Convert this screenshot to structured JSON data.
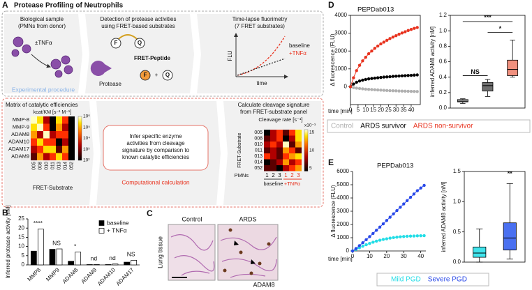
{
  "panel_a": {
    "label": "A",
    "title": "Protease Profiling of Neutrophils",
    "sample": [
      "Biological sample",
      "(PMNs from donor)"
    ],
    "stimulus": "±TNFα",
    "detection": [
      "Detection of protease activities",
      "using FRET-based substrates"
    ],
    "fluorophore": "F",
    "quencher": "Q",
    "peptide": "FRET-Peptide",
    "protease": "Protease",
    "plus": "+",
    "fluorimetry": [
      "Time-lapse fluorimetry",
      "(7 FRET substrates)"
    ],
    "curve_legend": [
      "baseline",
      "+TNFα"
    ],
    "y_label": "FLU",
    "x_label": "time",
    "procedure": "Experimental procedure",
    "matrix_title": "Matrix of catalytic efficiencies",
    "matrix_unit": "kcat/KM [s⁻¹ M⁻¹]",
    "enzymes": [
      "MMP-8",
      "MMP-9",
      "ADAM8",
      "ADAM10",
      "ADAM17",
      "ADAM9"
    ],
    "matrix_scale": [
      "10⁶",
      "10⁵",
      "10⁴",
      "10³",
      "10²"
    ],
    "substrates": [
      "005",
      "008",
      "010",
      "011",
      "013",
      "014",
      "052"
    ],
    "substrate_label": "FRET-Substrate",
    "inference": [
      "Infer specific enzyme",
      "activities from cleavage",
      "signature by comparison to",
      "known catalytic efficiencies"
    ],
    "computation": "Computational calculation",
    "signature": [
      "Calculate cleavage signature",
      "from FRET-substrate panel"
    ],
    "rate_unit": "Cleavage rate [s⁻¹]",
    "rate_scale_factor": "x10⁻³",
    "rate_scale": [
      "15",
      "10",
      "5"
    ],
    "pmn_label": "PMNs",
    "donors": [
      "1",
      "2",
      "3",
      "1",
      "2",
      "3"
    ],
    "conditions": [
      "baseline",
      "+TNFα"
    ]
  },
  "panel_c": {
    "label": "C",
    "columns": [
      "Control",
      "ARDS"
    ],
    "tissue": "Lung tissue",
    "stain": "ADAM8"
  },
  "chart_data": [
    {
      "type": "bar",
      "panel": "B",
      "y_label": "Inferred protease activity [nM]",
      "categories": [
        "MMP8",
        "MMP9",
        "ADAM8",
        "ADAM9",
        "ADAM10",
        "ADAM17"
      ],
      "series": [
        {
          "name": "baseline",
          "color": "#000000",
          "values": [
            7.5,
            8.5,
            2,
            0.2,
            0.2,
            1.5
          ]
        },
        {
          "name": "+ TNFα",
          "color": "#ffffff",
          "values": [
            19.5,
            8.7,
            7,
            0.2,
            0.5,
            2.5
          ]
        }
      ],
      "annotations": [
        "****",
        "NS",
        "*",
        "nd",
        "nd",
        "NS"
      ],
      "ylim": [
        0,
        25
      ],
      "yticks": [
        0,
        5,
        10,
        15,
        20,
        25
      ],
      "legend": "top-right"
    },
    {
      "type": "line",
      "panel": "D",
      "title": "PEPDab013",
      "y_label": "Δ fluorescence (FLU)",
      "x_label": "time [min]",
      "x": [
        0,
        2,
        4,
        6,
        8,
        10,
        12,
        14,
        16,
        18,
        20,
        22,
        24,
        26,
        28,
        30,
        32,
        34,
        36,
        38,
        40,
        42,
        44
      ],
      "series": [
        {
          "name": "Control",
          "color": "#b0b0b0",
          "values": [
            0,
            -50,
            -80,
            -100,
            -120,
            -140,
            -150,
            -160,
            -170,
            -180,
            -190,
            -200,
            -210,
            -220,
            -225,
            -230,
            -240,
            -245,
            -250,
            -255,
            -260,
            -265,
            -270
          ]
        },
        {
          "name": "ARDS survivor",
          "color": "#000000",
          "values": [
            0,
            150,
            250,
            320,
            370,
            410,
            440,
            460,
            480,
            500,
            520,
            540,
            550,
            560,
            580,
            590,
            600,
            610,
            620,
            630,
            640,
            650,
            660
          ]
        },
        {
          "name": "ARDS non-survivor",
          "color": "#e8321e",
          "values": [
            0,
            500,
            900,
            1200,
            1450,
            1650,
            1850,
            2000,
            2150,
            2280,
            2400,
            2500,
            2600,
            2700,
            2780,
            2860,
            2940,
            3010,
            3080,
            3150,
            3210,
            3270,
            3320
          ]
        }
      ],
      "xlim": [
        0,
        46
      ],
      "xticks": [
        0,
        5,
        10,
        15,
        20,
        25,
        30,
        35,
        40
      ],
      "ylim": [
        -1000,
        4000
      ],
      "yticks": [
        0,
        1000,
        2000,
        3000,
        4000
      ],
      "legend": "bottom"
    },
    {
      "type": "box",
      "y_label": "inferred ADAM8 activity [nM]",
      "boxes": [
        {
          "color": "#c8c8c8",
          "min": 0.06,
          "q1": 0.08,
          "median": 0.09,
          "q3": 0.11,
          "max": 0.12
        },
        {
          "color": "#6e6e6e",
          "min": 0.15,
          "q1": 0.22,
          "median": 0.29,
          "q3": 0.33,
          "max": 0.37
        },
        {
          "color": "#f0907e",
          "min": 0.4,
          "q1": 0.42,
          "median": 0.5,
          "q3": 0.62,
          "max": 0.88
        }
      ],
      "annotations": [
        "***",
        "*",
        "NS"
      ],
      "ylim": [
        0,
        1.2
      ],
      "yticks": [
        {
          "value": 0,
          "label": "0.0"
        },
        0.2,
        0.4,
        0.6,
        0.8,
        {
          "value": 1,
          "label": "1.0"
        },
        1.2
      ]
    },
    {
      "type": "line",
      "panel": "E",
      "title": "PEPDab013",
      "y_label": "Δ fluorescence (FLU)",
      "x_label": "time [min]",
      "x": [
        0,
        2,
        4,
        6,
        8,
        10,
        12,
        14,
        16,
        18,
        20,
        22,
        24,
        26,
        28,
        30,
        32,
        34,
        36,
        38,
        40,
        42
      ],
      "series": [
        {
          "name": "Mild PGD",
          "color": "#22dde6",
          "values": [
            0,
            120,
            240,
            360,
            470,
            570,
            660,
            740,
            810,
            870,
            920,
            970,
            1010,
            1040,
            1070,
            1090,
            1110,
            1120,
            1130,
            1140,
            1150,
            1155
          ]
        },
        {
          "name": "Severe PGD",
          "color": "#2848e8",
          "values": [
            0,
            180,
            400,
            620,
            850,
            1080,
            1320,
            1560,
            1800,
            2050,
            2300,
            2550,
            2800,
            3050,
            3300,
            3550,
            3800,
            4050,
            4300,
            4550,
            4750,
            4950
          ]
        }
      ],
      "xlim": [
        0,
        43
      ],
      "xticks": [
        0,
        10,
        20,
        30,
        40
      ],
      "ylim": [
        0,
        6000
      ],
      "yticks": [
        0,
        1000,
        2000,
        3000,
        4000,
        5000,
        6000
      ],
      "legend": "bottom"
    },
    {
      "type": "box",
      "y_label": "inferred ADAM8 activity [nM]",
      "boxes": [
        {
          "color": "#40e4ec",
          "min": 0,
          "q1": 0.08,
          "median": 0.15,
          "q3": 0.25,
          "max": 0.55
        },
        {
          "color": "#4a70f0",
          "min": 0.05,
          "q1": 0.2,
          "median": 0.4,
          "q3": 0.65,
          "max": 1.3
        }
      ],
      "annotations": [
        "**"
      ],
      "ylim": [
        0,
        1.5
      ],
      "yticks": [
        {
          "value": 0,
          "label": "0.0"
        },
        0.5,
        {
          "value": 1,
          "label": "1.0"
        },
        1.5
      ]
    }
  ]
}
